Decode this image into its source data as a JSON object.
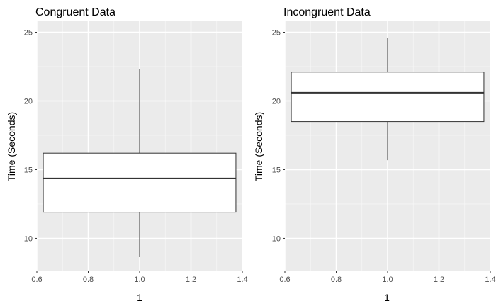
{
  "chart_data": [
    {
      "type": "boxplot",
      "title": "Congruent Data",
      "xlabel": "1",
      "ylabel": "Time (Seconds)",
      "xlim": [
        0.6,
        1.4
      ],
      "ylim": [
        7.6,
        25.8
      ],
      "x_ticks": [
        "0.6",
        "0.8",
        "1.0",
        "1.2",
        "1.4"
      ],
      "y_ticks": [
        "10",
        "15",
        "20",
        "25"
      ],
      "grid": true,
      "background": "#ebebeb",
      "box": {
        "x": 1.0,
        "width": 0.75,
        "min": 8.63,
        "q1": 11.9,
        "median": 14.36,
        "q3": 16.2,
        "max": 22.33
      }
    },
    {
      "type": "boxplot",
      "title": "Incongruent Data",
      "xlabel": "1",
      "ylabel": "Time (Seconds)",
      "xlim": [
        0.6,
        1.4
      ],
      "ylim": [
        7.6,
        25.8
      ],
      "x_ticks": [
        "0.6",
        "0.8",
        "1.0",
        "1.2",
        "1.4"
      ],
      "y_ticks": [
        "10",
        "15",
        "20",
        "25"
      ],
      "grid": true,
      "background": "#ebebeb",
      "box": {
        "x": 1.0,
        "width": 0.75,
        "min": 15.69,
        "q1": 18.5,
        "median": 20.6,
        "q3": 22.1,
        "max": 24.6
      }
    }
  ]
}
